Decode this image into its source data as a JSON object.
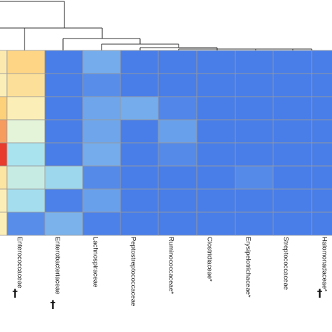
{
  "chart_data": {
    "type": "heatmap",
    "columns": [
      "",
      "Enterococcaceae",
      "Enterobacteriaceae",
      "Lachnospiraceae",
      "Peptostreptococcaceae",
      "Ruminococcaceae*",
      "Clostridiaceae*",
      "Erysipelotrichaceae*",
      "Streptococcaceae",
      "Halomonadaceae*"
    ],
    "column_markers": [
      "",
      "†",
      "†",
      "",
      "",
      "",
      "",
      "",
      "",
      "†"
    ],
    "row_count": 8,
    "values": [
      [
        0.62,
        0.7,
        0.05,
        0.2,
        0.05,
        0.05,
        0.05,
        0.05,
        0.05,
        0.05
      ],
      [
        0.6,
        0.66,
        0.05,
        0.1,
        0.05,
        0.05,
        0.05,
        0.05,
        0.05,
        0.05
      ],
      [
        0.72,
        0.6,
        0.05,
        0.18,
        0.2,
        0.08,
        0.05,
        0.05,
        0.05,
        0.05
      ],
      [
        0.8,
        0.5,
        0.05,
        0.18,
        0.05,
        0.16,
        0.05,
        0.05,
        0.05,
        0.05
      ],
      [
        0.95,
        0.38,
        0.05,
        0.2,
        0.05,
        0.09,
        0.05,
        0.05,
        0.05,
        0.05
      ],
      [
        0.64,
        0.44,
        0.34,
        0.09,
        0.05,
        0.05,
        0.05,
        0.09,
        0.05,
        0.05
      ],
      [
        0.6,
        0.36,
        0.06,
        0.16,
        0.05,
        0.05,
        0.05,
        0.05,
        0.05,
        0.05
      ],
      [
        0.6,
        0.1,
        0.22,
        0.06,
        0.05,
        0.05,
        0.05,
        0.05,
        0.05,
        0.05
      ]
    ],
    "color_scale": {
      "low": "#3b6fe8",
      "mid_low": "#a9e3ee",
      "mid": "#fbfbd0",
      "mid_high": "#fdd07a",
      "high": "#e41a1c"
    },
    "legend": "none",
    "grid": true,
    "dendrogram": "top"
  }
}
